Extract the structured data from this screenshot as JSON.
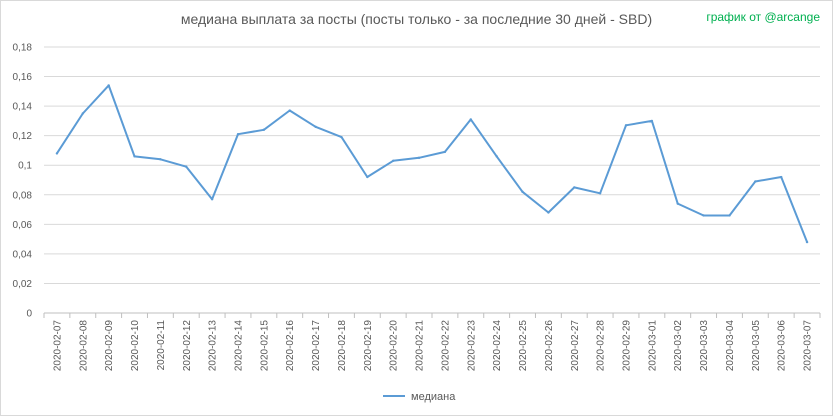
{
  "title": "медиана выплата за посты  (посты только - за последние 30 дней - SBD)",
  "credit": "график от @arcange",
  "chart_data": {
    "type": "line",
    "title": "медиана выплата за посты  (посты только - за последние 30 дней - SBD)",
    "xlabel": "",
    "ylabel": "",
    "ylim": [
      0,
      0.18
    ],
    "yticks": [
      "0",
      "0,02",
      "0,04",
      "0,06",
      "0,08",
      "0,1",
      "0,12",
      "0,14",
      "0,16",
      "0,18"
    ],
    "grid": true,
    "legend_position": "bottom",
    "categories": [
      "2020-02-07",
      "2020-02-08",
      "2020-02-09",
      "2020-02-10",
      "2020-02-11",
      "2020-02-12",
      "2020-02-13",
      "2020-02-14",
      "2020-02-15",
      "2020-02-16",
      "2020-02-17",
      "2020-02-18",
      "2020-02-19",
      "2020-02-20",
      "2020-02-21",
      "2020-02-22",
      "2020-02-23",
      "2020-02-24",
      "2020-02-25",
      "2020-02-26",
      "2020-02-27",
      "2020-02-28",
      "2020-02-29",
      "2020-03-01",
      "2020-03-02",
      "2020-03-03",
      "2020-03-04",
      "2020-03-05",
      "2020-03-06",
      "2020-03-07"
    ],
    "series": [
      {
        "name": "медиана",
        "color": "#5b9bd5",
        "values": [
          0.108,
          0.135,
          0.154,
          0.106,
          0.104,
          0.099,
          0.077,
          0.121,
          0.124,
          0.137,
          0.126,
          0.119,
          0.092,
          0.103,
          0.105,
          0.109,
          0.131,
          0.106,
          0.082,
          0.068,
          0.085,
          0.081,
          0.127,
          0.13,
          0.074,
          0.066,
          0.066,
          0.089,
          0.092,
          0.048
        ]
      }
    ]
  }
}
